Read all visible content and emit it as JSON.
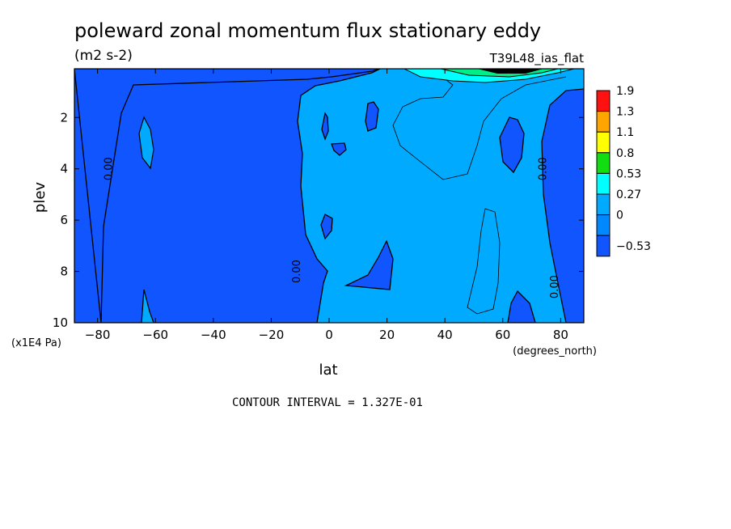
{
  "chart_data": {
    "type": "heatmap",
    "title": "poleward zonal momentum flux stationary eddy",
    "subtitle": "(m2 s-2)",
    "dataset": "T39L48_ias_flat",
    "xlabel": "lat",
    "xunits": "(degrees_north)",
    "ylabel": "plev",
    "yunits": "(x1E4 Pa)",
    "xlim": [
      -88,
      88
    ],
    "ylim": [
      10,
      0.1
    ],
    "x_ticks": [
      -80,
      -60,
      -40,
      -20,
      0,
      20,
      40,
      60,
      80
    ],
    "y_ticks": [
      2,
      4,
      6,
      8,
      10
    ],
    "footer": "CONTOUR INTERVAL = 1.327E-01",
    "contour_labels": [
      {
        "text": "0.00",
        "x": -75,
        "y": 4
      },
      {
        "text": "0.00",
        "x": -10,
        "y": 8
      },
      {
        "text": "0.00",
        "x": 75,
        "y": 4
      },
      {
        "text": "0.00",
        "x": 79,
        "y": 8.6
      }
    ],
    "legend": {
      "position": "right",
      "labels": [
        "1.9",
        "1.3",
        "1.1",
        "0.8",
        "0.53",
        "0.27",
        "0",
        "-0.53"
      ],
      "colors": [
        "#ff1111",
        "#ffa500",
        "#ffff00",
        "#11dd11",
        "#00ffff",
        "#00aaff",
        "#0088ff",
        "#1155ff"
      ]
    },
    "palette": {
      "neg": "#1155ff",
      "zero": "#00aaff",
      "pos_low": "#00ffff",
      "pos_mid": "#00ee88",
      "max": "#000000"
    }
  }
}
